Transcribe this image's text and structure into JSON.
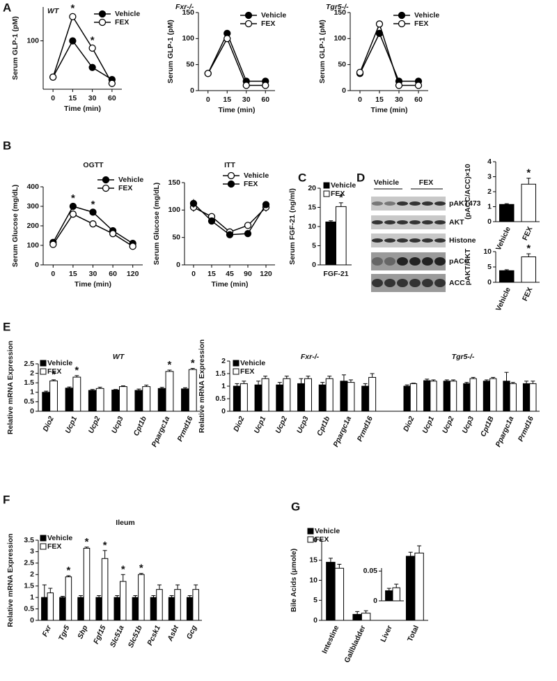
{
  "panel_labels": [
    "A",
    "B",
    "C",
    "D",
    "E",
    "F",
    "G"
  ],
  "blot": {
    "groups": [
      "Vehicle",
      "FEX"
    ],
    "bands": [
      "pAKT473",
      "AKT",
      "Histone",
      "pACC",
      "ACC"
    ]
  },
  "chart_data": [
    {
      "type": "line",
      "title": "WT",
      "x_label": "Time (min)",
      "y_label": "Serum GLP-1 (pM)",
      "categories": [
        "0",
        "15",
        "30",
        "60"
      ],
      "ylim": [
        0,
        170
      ],
      "yticks": [
        100
      ],
      "series": [
        {
          "name": "Vehicle",
          "color": "#000000",
          "values": [
            25,
            100,
            45,
            20
          ],
          "errors": [
            2,
            5,
            4,
            2
          ]
        },
        {
          "name": "FEX",
          "color": "#ffffff",
          "values": [
            25,
            150,
            85,
            12
          ],
          "errors": [
            2,
            6,
            5,
            2
          ]
        }
      ],
      "significance": [
        null,
        "*",
        "*",
        null
      ]
    },
    {
      "type": "line",
      "title": "Fxr-/-",
      "x_label": "Time (min)",
      "y_label": "Serum GLP-1 (pM)",
      "categories": [
        "0",
        "15",
        "30",
        "60"
      ],
      "ylim": [
        0,
        150
      ],
      "yticks": [
        0,
        50,
        100,
        150
      ],
      "series": [
        {
          "name": "Vehicle",
          "color": "#000000",
          "values": [
            33,
            110,
            18,
            18
          ],
          "errors": [
            2,
            3,
            2,
            2
          ]
        },
        {
          "name": "FEX",
          "color": "#ffffff",
          "values": [
            33,
            100,
            10,
            10
          ],
          "errors": [
            2,
            3,
            2,
            2
          ]
        }
      ]
    },
    {
      "type": "line",
      "title": "Tgr5-/-",
      "x_label": "Time (min)",
      "y_label": "Serum GLP-1 (pM)",
      "categories": [
        "0",
        "15",
        "30",
        "60"
      ],
      "ylim": [
        0,
        150
      ],
      "yticks": [
        0,
        50,
        100,
        150
      ],
      "series": [
        {
          "name": "Vehicle",
          "color": "#000000",
          "values": [
            33,
            110,
            18,
            18
          ],
          "errors": [
            2,
            3,
            2,
            2
          ]
        },
        {
          "name": "FEX",
          "color": "#ffffff",
          "values": [
            35,
            128,
            10,
            10
          ],
          "errors": [
            3,
            3,
            2,
            2
          ]
        }
      ]
    },
    {
      "type": "line",
      "title": "OGTT",
      "x_label": "Time (min)",
      "y_label": "Serum Glucose (mg/dL)",
      "categories": [
        "0",
        "15",
        "30",
        "60",
        "120"
      ],
      "ylim": [
        0,
        400
      ],
      "yticks": [
        0,
        100,
        200,
        300,
        400
      ],
      "series": [
        {
          "name": "Vehicle",
          "color": "#000000",
          "values": [
            115,
            300,
            270,
            175,
            110
          ],
          "errors": [
            8,
            15,
            12,
            12,
            8
          ]
        },
        {
          "name": "FEX",
          "color": "#ffffff",
          "values": [
            105,
            260,
            210,
            160,
            95
          ],
          "errors": [
            8,
            10,
            10,
            10,
            8
          ]
        }
      ],
      "significance": [
        null,
        "*",
        "*",
        null,
        null
      ]
    },
    {
      "type": "line",
      "title": "ITT",
      "x_label": "Time (min)",
      "y_label": "Serum Glucose (mg/dL)",
      "categories": [
        "0",
        "15",
        "45",
        "90",
        "120"
      ],
      "ylim": [
        0,
        150
      ],
      "yticks": [
        0,
        50,
        100,
        150
      ],
      "series": [
        {
          "name": "Vehicle",
          "color": "#ffffff",
          "values": [
            105,
            88,
            60,
            72,
            105
          ],
          "errors": [
            8,
            6,
            5,
            6,
            8
          ]
        },
        {
          "name": "FEX",
          "color": "#000000",
          "values": [
            112,
            80,
            55,
            57,
            110
          ],
          "errors": [
            8,
            6,
            4,
            4,
            6
          ]
        }
      ]
    },
    {
      "type": "bar",
      "y_label": "Serum FGF-21 (ng/ml)",
      "categories": [
        "FGF-21"
      ],
      "ylim": [
        0,
        20
      ],
      "yticks": [
        0,
        5,
        10,
        15,
        20
      ],
      "series": [
        {
          "name": "Vehicle",
          "color": "#000000",
          "values": [
            11.2
          ],
          "errors": [
            0.3
          ]
        },
        {
          "name": "FEX",
          "color": "#ffffff",
          "values": [
            15.2
          ],
          "errors": [
            1
          ]
        }
      ],
      "significance": [
        "*"
      ]
    },
    {
      "type": "bar",
      "y_label": "(pACC/ACC)×10",
      "categories": [
        "Vehicle",
        "FEX"
      ],
      "ylim": [
        0,
        4
      ],
      "yticks": [
        0,
        1,
        2,
        3,
        4
      ],
      "series": [
        {
          "colors": [
            "#000000",
            "#ffffff"
          ],
          "values": [
            1.15,
            2.5
          ],
          "errors": [
            0.05,
            0.4
          ]
        }
      ],
      "significance": [
        null,
        "*"
      ]
    },
    {
      "type": "bar",
      "y_label": "pAKT/AKT",
      "categories": [
        "Vehicle",
        "FEX"
      ],
      "ylim": [
        0,
        10
      ],
      "yticks": [
        0,
        5,
        10
      ],
      "series": [
        {
          "colors": [
            "#000000",
            "#ffffff"
          ],
          "values": [
            3.8,
            8.3
          ],
          "errors": [
            0.3,
            1
          ]
        }
      ],
      "significance": [
        null,
        "*"
      ]
    },
    {
      "type": "bar",
      "title": "WT",
      "y_label": "Relative mRNA Expression",
      "categories": [
        "Dio2",
        "Ucp1",
        "Ucp2",
        "Ucp3",
        "Cpt1b",
        "Ppargc1a",
        "Prmd16"
      ],
      "ylim": [
        0,
        2.5
      ],
      "yticks": [
        0,
        0.5,
        1,
        1.5,
        2,
        2.5
      ],
      "series": [
        {
          "name": "Vehicle",
          "color": "#000000",
          "values": [
            1,
            1.22,
            1.1,
            1.12,
            1.1,
            1.2,
            1.18
          ],
          "errors": [
            0.06,
            0.06,
            0.05,
            0.03,
            0.07,
            0.06,
            0.06
          ]
        },
        {
          "name": "FEX",
          "color": "#ffffff",
          "values": [
            1.6,
            1.8,
            1.2,
            1.3,
            1.3,
            2.1,
            2.2
          ],
          "errors": [
            0.06,
            0.08,
            0.07,
            0.04,
            0.08,
            0.07,
            0.06
          ]
        }
      ],
      "significance": [
        "*",
        "*",
        null,
        null,
        null,
        "*",
        "*"
      ]
    },
    {
      "type": "bar",
      "title": "Fxr-/-",
      "y_label": "Relative mRNA Expression",
      "categories": [
        "Dio2",
        "Ucp1",
        "Ucp2",
        "Ucp3",
        "Cpt1b",
        "Ppargc1a",
        "Prmd16"
      ],
      "ylim": [
        0,
        2
      ],
      "yticks": [
        0,
        0.5,
        1,
        1.5,
        2
      ],
      "series": [
        {
          "name": "Vehicle",
          "color": "#000000",
          "values": [
            1,
            1.05,
            1.05,
            1.1,
            1.05,
            1.2,
            1
          ],
          "errors": [
            0.1,
            0.15,
            0.1,
            0.2,
            0.1,
            0.25,
            0.1
          ]
        },
        {
          "name": "FEX",
          "color": "#ffffff",
          "values": [
            1.1,
            1.3,
            1.3,
            1.3,
            1.3,
            1.15,
            1.35
          ],
          "errors": [
            0.1,
            0.1,
            0.1,
            0.1,
            0.1,
            0.1,
            0.15
          ]
        }
      ]
    },
    {
      "type": "bar",
      "title": "Tgr5-/-",
      "categories": [
        "Dio2",
        "Ucp1",
        "Ucp2",
        "Ucp3",
        "Cpt1B",
        "Ppargc1a",
        "Prmd16"
      ],
      "ylim": [
        0,
        2
      ],
      "series": [
        {
          "color": "#000000",
          "values": [
            1,
            1.22,
            1.2,
            1.1,
            1.2,
            1.2,
            1.1
          ],
          "errors": [
            0.05,
            0.06,
            0.05,
            0.05,
            0.05,
            0.35,
            0.1
          ]
        },
        {
          "color": "#ffffff",
          "values": [
            1.1,
            1.2,
            1.2,
            1.3,
            1.3,
            1.1,
            1.1
          ],
          "errors": [
            0.02,
            0.05,
            0.05,
            0.05,
            0.05,
            0.05,
            0.1
          ]
        }
      ]
    },
    {
      "type": "bar",
      "title": "Ileum",
      "y_label": "Relative mRNA Expression",
      "categories": [
        "Fxr",
        "Tgr5",
        "Shp",
        "Fgf15",
        "Slc51a",
        "Slc51b",
        "Pcsk1",
        "Asbt",
        "Gcg"
      ],
      "ylim": [
        0,
        3.5
      ],
      "yticks": [
        0,
        0.5,
        1,
        1.5,
        2,
        2.5,
        3,
        3.5
      ],
      "series": [
        {
          "name": "Vehicle",
          "color": "#000000",
          "values": [
            1,
            1,
            1,
            1,
            1,
            1,
            1,
            1,
            1
          ],
          "errors": [
            0.55,
            0.05,
            0.08,
            0.08,
            0.08,
            0.08,
            0.08,
            0.08,
            0.08
          ]
        },
        {
          "name": "FEX",
          "color": "#ffffff",
          "values": [
            1.2,
            1.9,
            3.15,
            2.7,
            1.7,
            2,
            1.35,
            1.35,
            1.35
          ],
          "errors": [
            0.2,
            0.05,
            0.05,
            0.35,
            0.3,
            0.05,
            0.2,
            0.2,
            0.2
          ]
        }
      ],
      "significance": [
        null,
        "*",
        "*",
        "*",
        "*",
        "*",
        null,
        null,
        null
      ]
    },
    {
      "type": "bar",
      "y_label": "Bile Acids (μmole)",
      "categories": [
        "Intestine",
        "Gallbladder",
        "Liver",
        "Total"
      ],
      "ylim": [
        0,
        20
      ],
      "yticks": [
        0,
        5,
        10,
        15,
        20
      ],
      "series": [
        {
          "name": "Vehicle",
          "color": "#000000",
          "values": [
            14.5,
            1.5,
            null,
            16
          ],
          "errors": [
            1,
            0.7,
            null,
            1
          ]
        },
        {
          "name": "FEX",
          "color": "#ffffff",
          "values": [
            13,
            1.8,
            null,
            16.8
          ],
          "errors": [
            1,
            0.6,
            null,
            1.8
          ]
        }
      ]
    },
    {
      "type": "bar",
      "ylim": [
        0,
        0.055
      ],
      "yticks": [
        0,
        0.05
      ],
      "series": [
        {
          "color": "#000000",
          "values": [
            0.017
          ],
          "errors": [
            0.004
          ]
        },
        {
          "color": "#ffffff",
          "values": [
            0.022
          ],
          "errors": [
            0.006
          ]
        }
      ]
    }
  ]
}
